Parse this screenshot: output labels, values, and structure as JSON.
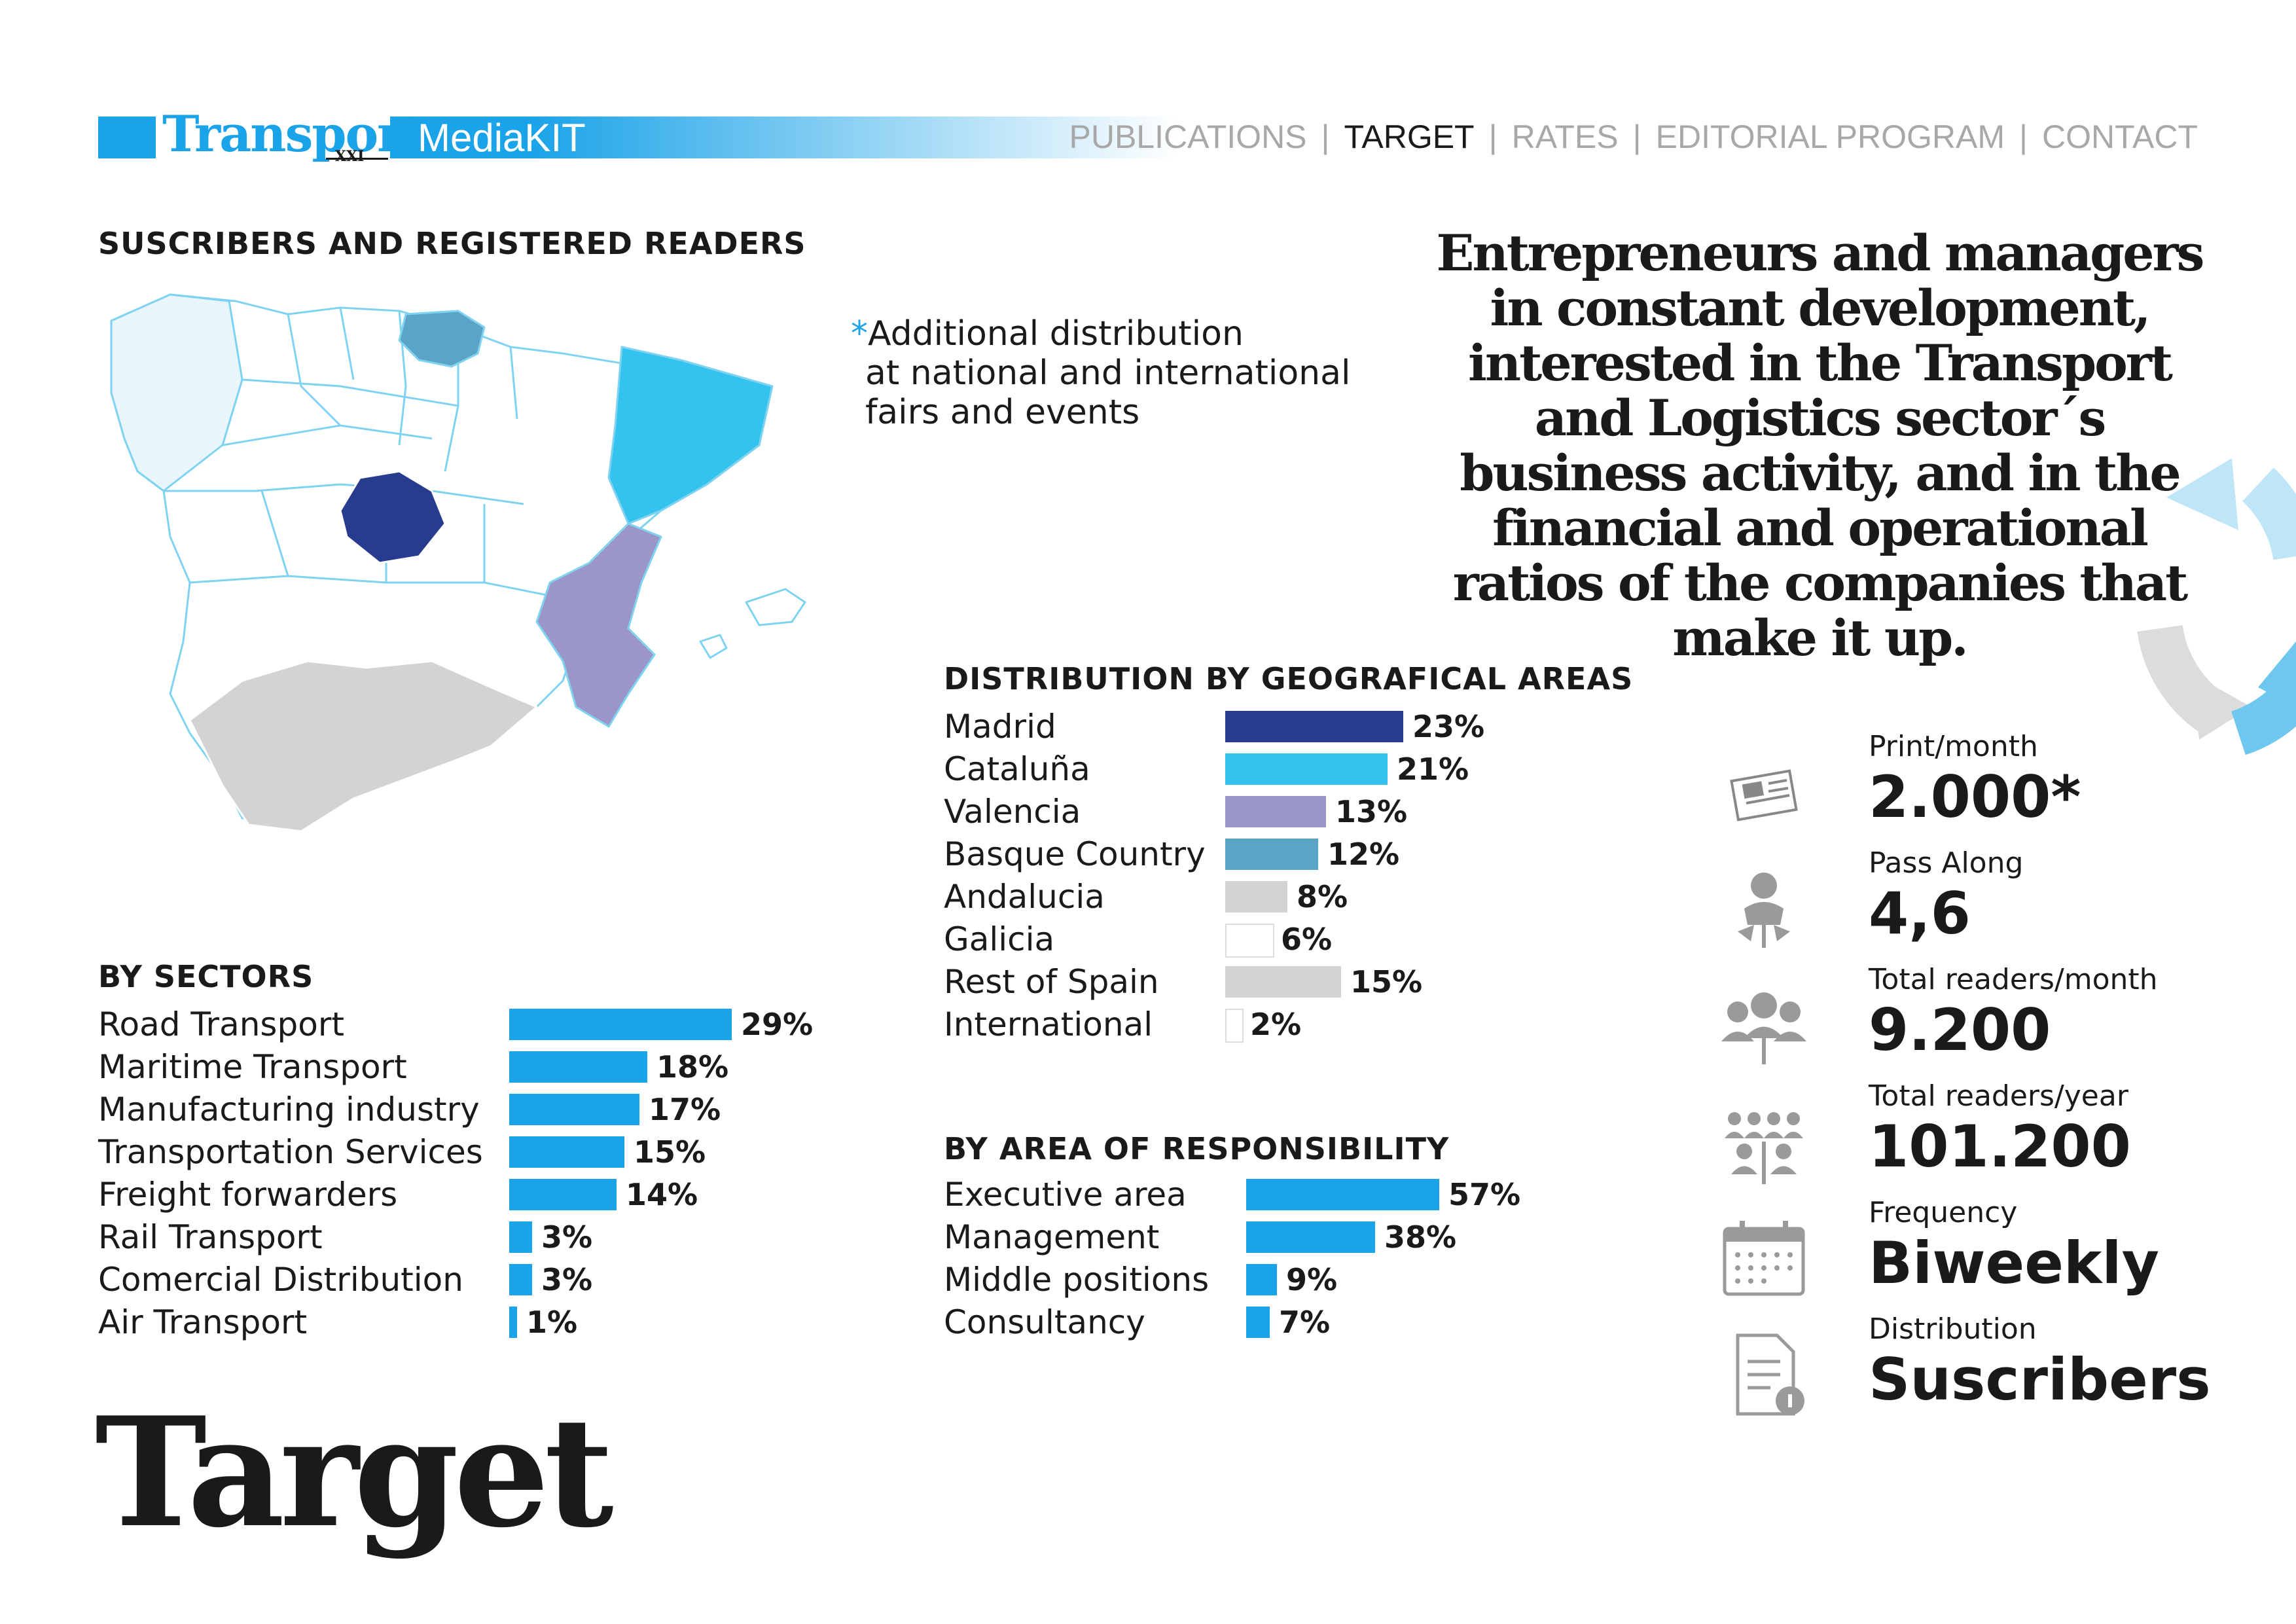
{
  "header": {
    "logo_text": "Transporte",
    "logo_sub": "XXI",
    "mediakit": "MediaKIT",
    "nav": [
      "PUBLICATIONS",
      "TARGET",
      "RATES",
      "EDITORIAL PROGRAM",
      "CONTACT"
    ],
    "nav_active": "TARGET",
    "separator": "|"
  },
  "map_section": {
    "title": "SUSCRIBERS AND REGISTERED READERS",
    "note_star": "*",
    "note_lines": [
      "Additional distribution",
      "at national and international",
      "fairs and events"
    ]
  },
  "headline": "Entrepreneurs and managers in constant development, interested in the Transport and Logistics sector´s business activity, and in the financial and operational ratios of the companies that make it up.",
  "page_title": "Target",
  "colors": {
    "accent": "#1aa3e8",
    "madrid": "#283c8f",
    "cataluna": "#34c2ef",
    "valencia": "#9a96c8",
    "basque": "#5ca4c5",
    "grey": "#d3d3d3"
  },
  "chart_data": [
    {
      "type": "bar",
      "title": "BY SECTORS",
      "categories": [
        "Road Transport",
        "Maritime Transport",
        "Manufacturing industry",
        "Transportation Services",
        "Freight forwarders",
        "Rail Transport",
        "Comercial Distribution",
        "Air Transport"
      ],
      "values": [
        29,
        18,
        17,
        15,
        14,
        3,
        3,
        1
      ],
      "labels": [
        "29%",
        "18%",
        "17%",
        "15%",
        "14%",
        "3%",
        "3%",
        "1%"
      ],
      "color": "#1aa3e8"
    },
    {
      "type": "bar",
      "title": "DISTRIBUTION BY GEOGRAFICAL AREAS",
      "categories": [
        "Madrid",
        "Cataluña",
        "Valencia",
        "Basque Country",
        "Andalucia",
        "Galicia",
        "Rest of Spain",
        "International"
      ],
      "values": [
        23,
        21,
        13,
        12,
        8,
        6,
        15,
        2
      ],
      "labels": [
        "23%",
        "21%",
        "13%",
        "12%",
        "8%",
        "6%",
        "15%",
        "2%"
      ],
      "colors": [
        "#283c8f",
        "#34c2ef",
        "#9a96c8",
        "#5ca4c5",
        "#d3d3d3",
        "#ffffff",
        "#d3d3d3",
        "#ffffff"
      ]
    },
    {
      "type": "bar",
      "title": "BY AREA OF RESPONSIBILITY",
      "categories": [
        "Executive area",
        "Management",
        "Middle positions",
        "Consultancy"
      ],
      "values": [
        57,
        38,
        9,
        7
      ],
      "labels": [
        "57%",
        "38%",
        "9%",
        "7%"
      ],
      "color": "#1aa3e8"
    }
  ],
  "stats": [
    {
      "label": "Print/month",
      "value": "2.000*",
      "icon": "newspaper-icon"
    },
    {
      "label": "Pass Along",
      "value": "4,6",
      "icon": "person-share-icon"
    },
    {
      "label": "Total readers/month",
      "value": "9.200",
      "icon": "group-icon"
    },
    {
      "label": "Total readers/year",
      "value": "101.200",
      "icon": "crowd-icon"
    },
    {
      "label": "Frequency",
      "value": "Biweekly",
      "icon": "calendar-icon"
    },
    {
      "label": "Distribution",
      "value": "Suscribers",
      "icon": "document-icon"
    }
  ]
}
